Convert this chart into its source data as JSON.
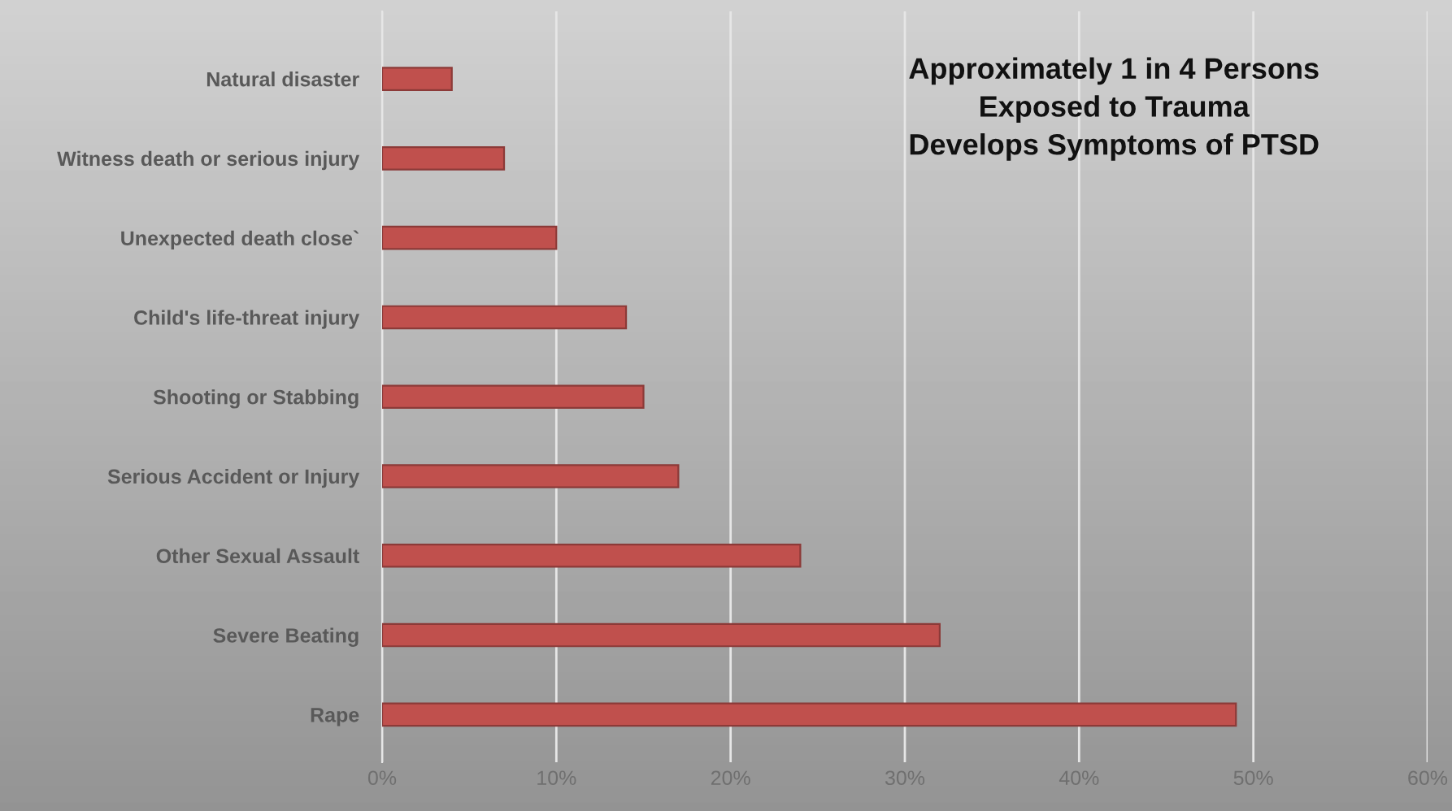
{
  "chart_data": {
    "type": "bar",
    "orientation": "horizontal",
    "categories": [
      "Natural disaster",
      "Witness death or serious injury",
      "Unexpected death close`",
      "Child's life-threat injury",
      "Shooting or Stabbing",
      "Serious Accident or Injury",
      "Other Sexual Assault",
      "Severe Beating",
      "Rape"
    ],
    "values": [
      4,
      7,
      10,
      14,
      15,
      17,
      24,
      32,
      49
    ],
    "color": "#c0504d",
    "xlim": [
      0,
      60
    ],
    "xticks": [
      {
        "value": 0,
        "label": "0%"
      },
      {
        "value": 10,
        "label": "10%"
      },
      {
        "value": 20,
        "label": "20%"
      },
      {
        "value": 30,
        "label": "30%"
      },
      {
        "value": 40,
        "label": "40%"
      },
      {
        "value": 50,
        "label": "50%"
      },
      {
        "value": 60,
        "label": "60%"
      }
    ],
    "grid": "x",
    "annotations": [
      "Approximately 1 in 4 Persons\nExposed to Trauma\nDevelops Symptoms of PTSD"
    ]
  }
}
